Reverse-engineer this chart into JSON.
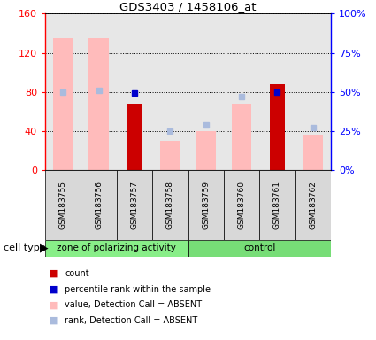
{
  "title": "GDS3403 / 1458106_at",
  "samples": [
    "GSM183755",
    "GSM183756",
    "GSM183757",
    "GSM183758",
    "GSM183759",
    "GSM183760",
    "GSM183761",
    "GSM183762"
  ],
  "groups": [
    "zone of polarizing activity",
    "zone of polarizing activity",
    "zone of polarizing activity",
    "zone of polarizing activity",
    "control",
    "control",
    "control",
    "control"
  ],
  "count_values": [
    null,
    null,
    68,
    null,
    null,
    null,
    88,
    null
  ],
  "percentile_values": [
    null,
    null,
    49,
    null,
    null,
    null,
    50,
    null
  ],
  "value_absent": [
    135,
    135,
    null,
    30,
    40,
    68,
    null,
    35
  ],
  "rank_absent": [
    50,
    51,
    null,
    25,
    29,
    47,
    null,
    27
  ],
  "ylim_left": [
    0,
    160
  ],
  "ylim_right": [
    0,
    100
  ],
  "yticks_left": [
    0,
    40,
    80,
    120,
    160
  ],
  "yticks_right": [
    0,
    25,
    50,
    75,
    100
  ],
  "yticklabels_left": [
    "0",
    "40",
    "80",
    "120",
    "160"
  ],
  "yticklabels_right": [
    "0%",
    "25%",
    "50%",
    "75%",
    "100%"
  ],
  "color_count": "#cc0000",
  "color_percentile": "#0000cc",
  "color_value_absent": "#ffbbbb",
  "color_rank_absent": "#aabbdd",
  "group_colors": {
    "zone of polarizing activity": "#88ee88",
    "control": "#77dd77"
  },
  "cell_type_label": "cell type",
  "legend_items": [
    {
      "label": "count",
      "color": "#cc0000"
    },
    {
      "label": "percentile rank within the sample",
      "color": "#0000cc"
    },
    {
      "label": "value, Detection Call = ABSENT",
      "color": "#ffbbbb"
    },
    {
      "label": "rank, Detection Call = ABSENT",
      "color": "#aabbdd"
    }
  ],
  "bar_width": 0.4,
  "pink_bar_width": 0.55
}
